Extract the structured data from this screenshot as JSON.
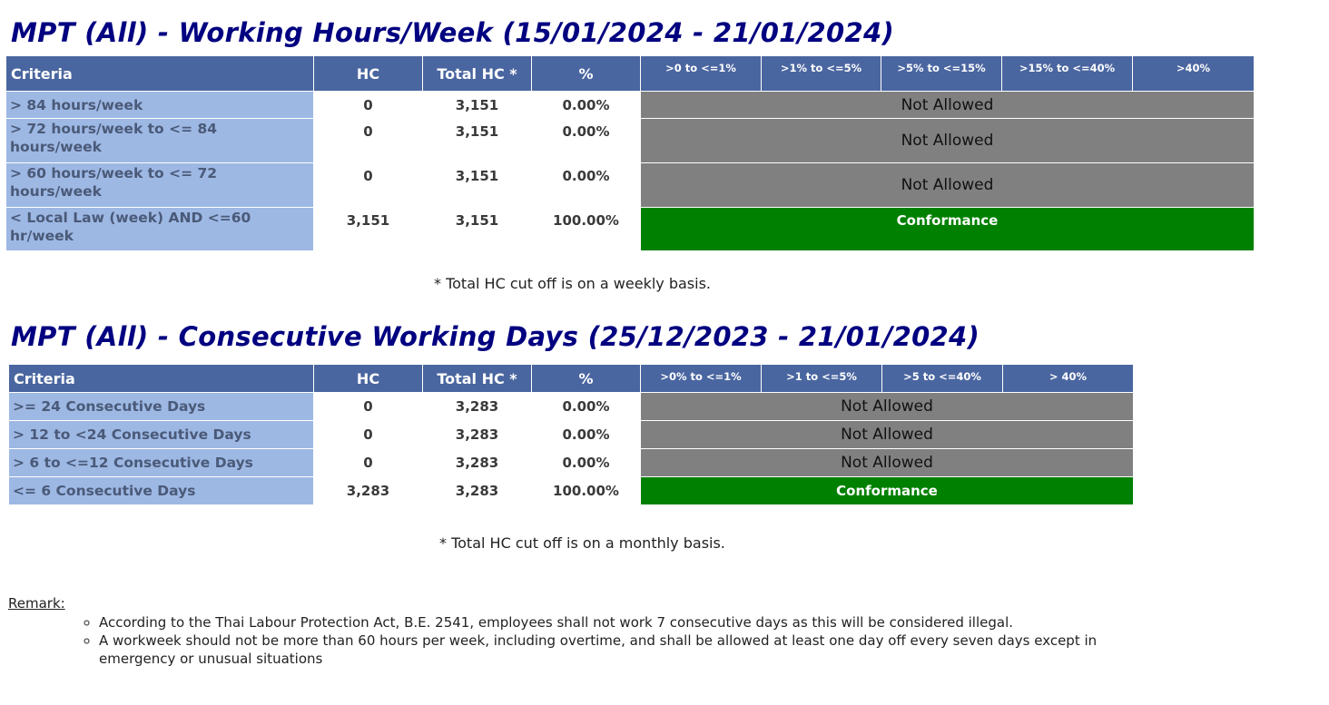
{
  "section1": {
    "title": "MPT (All) - Working Hours/Week (15/01/2024 - 21/01/2024)",
    "headers": {
      "criteria": "Criteria",
      "hc": "HC",
      "total_hc": "Total HC *",
      "pct": "%"
    },
    "bands": [
      ">0 to <=1%",
      ">1% to <=5%",
      ">5% to <=15%",
      ">15% to <=40%",
      ">40%"
    ],
    "rows": [
      {
        "criteria": "> 84 hours/week",
        "hc": "0",
        "total_hc": "3,151",
        "pct": "0.00%",
        "status": "Not Allowed"
      },
      {
        "criteria": "> 72 hours/week to <= 84 hours/week",
        "hc": "0",
        "total_hc": "3,151",
        "pct": "0.00%",
        "status": "Not Allowed"
      },
      {
        "criteria": "> 60 hours/week to <= 72 hours/week",
        "hc": "0",
        "total_hc": "3,151",
        "pct": "0.00%",
        "status": "Not Allowed"
      },
      {
        "criteria": "< Local Law (week) AND <=60 hr/week",
        "hc": "3,151",
        "total_hc": "3,151",
        "pct": "100.00%",
        "status": "Conformance"
      }
    ],
    "note": "* Total HC cut off is on a weekly basis."
  },
  "section2": {
    "title": "MPT (All) - Consecutive Working Days (25/12/2023 - 21/01/2024)",
    "headers": {
      "criteria": "Criteria",
      "hc": "HC",
      "total_hc": "Total HC *",
      "pct": "%"
    },
    "bands": [
      ">0% to <=1%",
      ">1 to <=5%",
      ">5 to <=40%",
      "> 40%"
    ],
    "rows": [
      {
        "criteria": ">= 24 Consecutive Days",
        "hc": "0",
        "total_hc": "3,283",
        "pct": "0.00%",
        "status": "Not Allowed"
      },
      {
        "criteria": "> 12 to <24 Consecutive Days",
        "hc": "0",
        "total_hc": "3,283",
        "pct": "0.00%",
        "status": "Not Allowed"
      },
      {
        "criteria": "> 6 to <=12 Consecutive Days",
        "hc": "0",
        "total_hc": "3,283",
        "pct": "0.00%",
        "status": "Not Allowed"
      },
      {
        "criteria": "<= 6 Consecutive Days",
        "hc": "3,283",
        "total_hc": "3,283",
        "pct": "100.00%",
        "status": "Conformance"
      }
    ],
    "note": "* Total HC cut off is on a monthly basis."
  },
  "remark": {
    "label": "Remark:",
    "items": [
      "According to the Thai Labour Protection Act, B.E. 2541, employees shall not work 7 consecutive days as this will be considered illegal.",
      "A workweek should not be more than 60 hours per week, including overtime, and shall be allowed at least one day off every seven days except in emergency or unusual situations"
    ]
  },
  "colors": {
    "title": "#000080",
    "header_bg": "#4a66a0",
    "criteria_bg": "#9eb8e4",
    "not_allowed_bg": "#808080",
    "conformance_bg": "#008000"
  }
}
